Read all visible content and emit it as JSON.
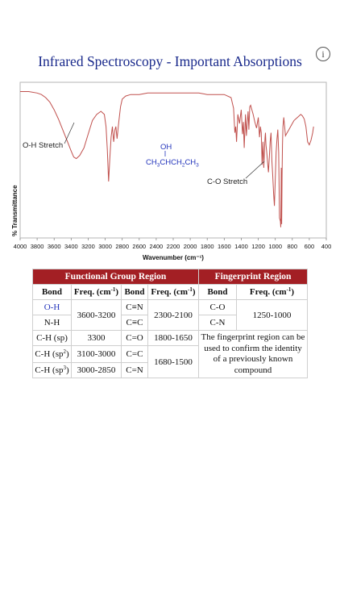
{
  "page": {
    "title": "Infrared Spectroscopy - Important Absorptions",
    "info_icon": "info-icon",
    "info_glyph": "i"
  },
  "chart_data": {
    "type": "line",
    "xlabel": "Wavenumber (cm⁻¹)",
    "ylabel": "% Transmittance",
    "xlim": [
      4000,
      400
    ],
    "x_reversed": true,
    "xticks": [
      4000,
      3800,
      3600,
      3400,
      3200,
      3000,
      2800,
      2600,
      2400,
      2200,
      2000,
      1800,
      1600,
      1400,
      1200,
      1000,
      800,
      600,
      400
    ],
    "ylim": [
      0,
      100
    ],
    "grid": false,
    "line_color": "#c0504d",
    "series": [
      {
        "x": [
          4000,
          3900,
          3800,
          3750,
          3700,
          3650,
          3600,
          3550,
          3500,
          3450,
          3400,
          3370,
          3340,
          3300,
          3250,
          3200,
          3150,
          3100,
          3050,
          3010,
          2990,
          2975,
          2960,
          2945,
          2930,
          2915,
          2900,
          2885,
          2875,
          2860,
          2840,
          2820,
          2800,
          2760,
          2700,
          2600,
          2500,
          2400,
          2300,
          2200,
          2100,
          2000,
          1900,
          1800,
          1700,
          1600,
          1520,
          1490,
          1475,
          1465,
          1455,
          1440,
          1420,
          1400,
          1385,
          1375,
          1365,
          1350,
          1340,
          1330,
          1320,
          1310,
          1300,
          1290,
          1280,
          1260,
          1240,
          1220,
          1200,
          1185,
          1175,
          1165,
          1155,
          1145,
          1135,
          1125,
          1120,
          1115,
          1110,
          1100,
          1090,
          1080,
          1070,
          1060,
          1050,
          1040,
          1030,
          1020,
          1010,
          1000,
          990,
          980,
          970,
          960,
          950,
          940,
          935,
          930,
          925,
          920,
          915,
          910,
          900,
          890,
          880,
          860,
          840,
          820,
          800,
          780,
          760,
          740,
          720,
          700,
          680,
          660,
          640,
          620,
          600,
          580,
          560,
          550
        ],
        "y": [
          95,
          95,
          94,
          93,
          91,
          88,
          83,
          77,
          70,
          63,
          56,
          52,
          51,
          53,
          58,
          67,
          76,
          80,
          82,
          80,
          72,
          57,
          36,
          52,
          65,
          72,
          62,
          70,
          72,
          64,
          75,
          85,
          90,
          92,
          93,
          93,
          94,
          94,
          94,
          94,
          94,
          94,
          94,
          93,
          93,
          93,
          91,
          84,
          68,
          72,
          62,
          80,
          74,
          83,
          67,
          75,
          58,
          80,
          66,
          74,
          82,
          70,
          85,
          86,
          84,
          80,
          75,
          71,
          78,
          65,
          72,
          68,
          47,
          62,
          45,
          60,
          65,
          68,
          60,
          55,
          48,
          42,
          52,
          62,
          68,
          50,
          40,
          28,
          20,
          38,
          55,
          64,
          70,
          55,
          12,
          10,
          6,
          45,
          8,
          40,
          60,
          72,
          78,
          72,
          66,
          68,
          70,
          72,
          74,
          76,
          77,
          78,
          79,
          80,
          79,
          77,
          72,
          62,
          60,
          63,
          68,
          72
        ]
      }
    ],
    "annotations": {
      "oh_stretch": "O-H Stretch",
      "co_stretch": "C-O Stretch",
      "molecule_top": "OH",
      "molecule_parts": [
        "CH",
        "3",
        "CHCH",
        "2",
        "CH",
        "3"
      ]
    }
  },
  "table": {
    "group_functional": "Functional Group Region",
    "group_fingerprint": "Fingerprint Region",
    "headers": {
      "bond": "Bond",
      "freq_prefix": "Freq. (cm",
      "freq_sup": "-1",
      "freq_suffix": ")"
    },
    "col1": {
      "oh": "O-H",
      "nh": "N-H",
      "oh_nh_freq": "3600-3200",
      "ch_sp": "C-H (sp)",
      "ch_sp_freq": "3300",
      "ch_sp2_prefix": "C-H (sp",
      "ch_sp2_sup": "2",
      "ch_sp2_suffix": ")",
      "ch_sp2_freq": "3100-3000",
      "ch_sp3_prefix": "C-H (sp",
      "ch_sp3_sup": "3",
      "ch_sp3_suffix": ")",
      "ch_sp3_freq": "3000-2850"
    },
    "col2": {
      "triple_cn": "C≡N",
      "triple_cc": "C≡C",
      "triple_freq": "2300-2100",
      "co": "C=O",
      "co_freq": "1800-1650",
      "cc": "C=C",
      "cn": "C=N",
      "double_freq": "1680-1500"
    },
    "col3": {
      "co": "C-O",
      "cn": "C-N",
      "freq": "1250-1000",
      "note": "The fingerprint region can be used to confirm the identity of a previously known compound"
    }
  }
}
